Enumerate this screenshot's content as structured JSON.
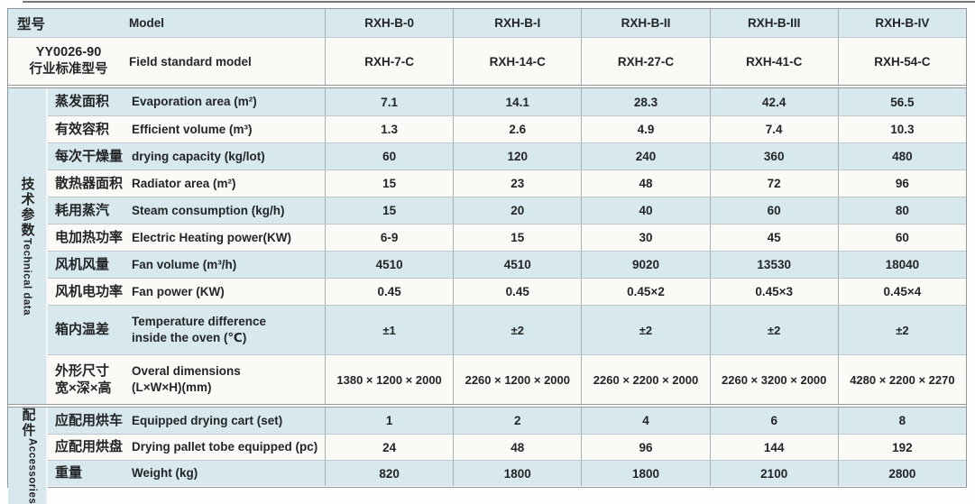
{
  "colors": {
    "row_blue": "#d7e8ee",
    "row_white": "#fbfaf7",
    "grid_line": "#8f979c",
    "text": "#232527"
  },
  "table": {
    "header": {
      "model_label_zh": "型号",
      "model_label_en": "Model",
      "models": [
        "RXH-B-0",
        "RXH-B-I",
        "RXH-B-II",
        "RXH-B-III",
        "RXH-B-IV"
      ],
      "standard_zh1": "YY0026-90",
      "standard_zh2": "行业标准型号",
      "standard_label_en": "Field standard model",
      "standard_models": [
        "RXH-7-C",
        "RXH-14-C",
        "RXH-27-C",
        "RXH-41-C",
        "RXH-54-C"
      ]
    },
    "sections": [
      {
        "id": "technical",
        "label_zh": "技术参数",
        "label_en": "Technical data",
        "rows": [
          {
            "zh": [
              "蒸发面积"
            ],
            "en": [
              "Evaporation area (m²)"
            ],
            "values": [
              "7.1",
              "14.1",
              "28.3",
              "42.4",
              "56.5"
            ]
          },
          {
            "zh": [
              "有效容积"
            ],
            "en": [
              "Efficient volume (m³)"
            ],
            "values": [
              "1.3",
              "2.6",
              "4.9",
              "7.4",
              "10.3"
            ]
          },
          {
            "zh": [
              "每次干燥量"
            ],
            "en": [
              "drying capacity (kg/lot)"
            ],
            "values": [
              "60",
              "120",
              "240",
              "360",
              "480"
            ]
          },
          {
            "zh": [
              "散热器面积"
            ],
            "en": [
              "Radiator area (m²)"
            ],
            "values": [
              "15",
              "23",
              "48",
              "72",
              "96"
            ]
          },
          {
            "zh": [
              "耗用蒸汽"
            ],
            "en": [
              "Steam consumption (kg/h)"
            ],
            "values": [
              "15",
              "20",
              "40",
              "60",
              "80"
            ]
          },
          {
            "zh": [
              "电加热功率"
            ],
            "en": [
              "Electric Heating power(KW)"
            ],
            "values": [
              "6-9",
              "15",
              "30",
              "45",
              "60"
            ]
          },
          {
            "zh": [
              "风机风量"
            ],
            "en": [
              "Fan volume (m³/h)"
            ],
            "values": [
              "4510",
              "4510",
              "9020",
              "13530",
              "18040"
            ]
          },
          {
            "zh": [
              "风机电功率"
            ],
            "en": [
              "Fan power (KW)"
            ],
            "values": [
              "0.45",
              "0.45",
              "0.45×2",
              "0.45×3",
              "0.45×4"
            ]
          },
          {
            "zh": [
              "箱内温差"
            ],
            "en": [
              "Temperature difference",
              "inside the oven (℃)"
            ],
            "values": [
              "±1",
              "±2",
              "±2",
              "±2",
              "±2"
            ]
          },
          {
            "zh": [
              "外形尺寸",
              "宽×深×高"
            ],
            "en": [
              "Overal dimensions",
              "(L×W×H)(mm)"
            ],
            "values": [
              "1380 × 1200 × 2000",
              "2260 × 1200 × 2000",
              "2260 × 2200 × 2000",
              "2260 × 3200 × 2000",
              "4280 × 2200 × 2270"
            ]
          }
        ]
      },
      {
        "id": "accessories",
        "label_zh": "配件",
        "label_en": "Accessories",
        "rows": [
          {
            "zh": [
              "应配用烘车"
            ],
            "en": [
              "Equipped drying cart (set)"
            ],
            "values": [
              "1",
              "2",
              "4",
              "6",
              "8"
            ]
          },
          {
            "zh": [
              "应配用烘盘"
            ],
            "en": [
              "Drying pallet tobe equipped (pc)"
            ],
            "values": [
              "24",
              "48",
              "96",
              "144",
              "192"
            ]
          },
          {
            "zh": [
              "重量"
            ],
            "en": [
              "Weight (kg)"
            ],
            "values": [
              "820",
              "1800",
              "1800",
              "2100",
              "2800"
            ]
          }
        ]
      }
    ]
  }
}
